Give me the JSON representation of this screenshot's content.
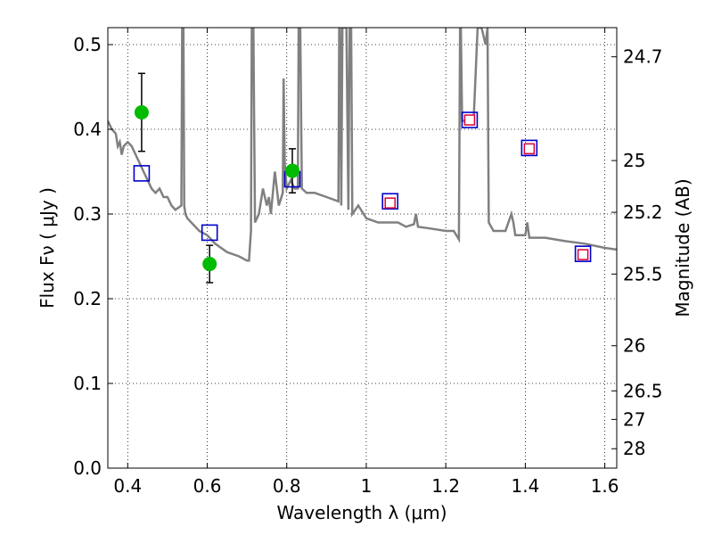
{
  "chart_data": {
    "type": "scatter",
    "xlabel": "Wavelength  λ (μm)",
    "ylabel": "Flux  Fν  ( μJy )",
    "ylabel_right": "Magnitude (AB)",
    "xlim": [
      0.35,
      1.63
    ],
    "ylim": [
      0.0,
      0.52
    ],
    "grid": true,
    "x_ticks": [
      0.4,
      0.6,
      0.8,
      1.0,
      1.2,
      1.4,
      1.6
    ],
    "x_tick_labels": [
      "0.4",
      "0.6",
      "0.8",
      "1",
      "1.2",
      "1.4",
      "1.6"
    ],
    "y_ticks": [
      0.0,
      0.1,
      0.2,
      0.3,
      0.4,
      0.5
    ],
    "y_tick_labels": [
      "0.0",
      "0.1",
      "0.2",
      "0.3",
      "0.4",
      "0.5"
    ],
    "right_ticks": [
      {
        "label": "24.7",
        "flux": 0.4856
      },
      {
        "label": "25",
        "flux": 0.3631
      },
      {
        "label": "25.2",
        "flux": 0.302
      },
      {
        "label": "25.5",
        "flux": 0.2291
      },
      {
        "label": "26",
        "flux": 0.1445
      },
      {
        "label": "26.5",
        "flux": 0.0912
      },
      {
        "label": "27",
        "flux": 0.0575
      },
      {
        "label": "28",
        "flux": 0.0229
      }
    ],
    "colors": {
      "observed": "#00bb00",
      "model_open": "#0000cc",
      "model_inner": "#dd0033",
      "spectrum": "#808080"
    },
    "series": [
      {
        "marker": "circle",
        "x": [
          0.435,
          0.606,
          0.814
        ],
        "y": [
          0.42,
          0.241,
          0.351
        ],
        "err": [
          0.046,
          0.022,
          0.026
        ]
      },
      {
        "marker": "open-square",
        "x": [
          0.435,
          0.606,
          0.814,
          1.06,
          1.26,
          1.41,
          1.545
        ],
        "y": [
          0.348,
          0.278,
          0.341,
          0.315,
          0.411,
          0.378,
          0.253
        ]
      },
      {
        "marker": "small-square",
        "x": [
          1.06,
          1.26,
          1.41,
          1.545
        ],
        "y": [
          0.313,
          0.411,
          0.377,
          0.252
        ]
      }
    ],
    "spectrum": {
      "x": [
        0.35,
        0.36,
        0.37,
        0.375,
        0.38,
        0.385,
        0.39,
        0.4,
        0.41,
        0.42,
        0.43,
        0.44,
        0.45,
        0.46,
        0.47,
        0.48,
        0.49,
        0.5,
        0.51,
        0.52,
        0.535,
        0.537,
        0.54,
        0.542,
        0.545,
        0.55,
        0.58,
        0.6,
        0.62,
        0.65,
        0.68,
        0.7,
        0.705,
        0.71,
        0.712,
        0.716,
        0.72,
        0.73,
        0.74,
        0.75,
        0.755,
        0.76,
        0.77,
        0.78,
        0.79,
        0.792,
        0.795,
        0.8,
        0.81,
        0.82,
        0.828,
        0.83,
        0.834,
        0.838,
        0.85,
        0.87,
        0.9,
        0.93,
        0.932,
        0.934,
        0.937,
        0.94,
        0.95,
        0.955,
        0.958,
        0.962,
        0.965,
        0.98,
        1.0,
        1.03,
        1.08,
        1.1,
        1.12,
        1.125,
        1.13,
        1.16,
        1.2,
        1.22,
        1.233,
        1.236,
        1.238,
        1.241,
        1.25,
        1.27,
        1.28,
        1.29,
        1.3,
        1.305,
        1.308,
        1.32,
        1.35,
        1.365,
        1.37,
        1.375,
        1.4,
        1.405,
        1.41,
        1.45,
        1.5,
        1.55,
        1.6,
        1.63
      ],
      "y": [
        0.41,
        0.4,
        0.395,
        0.38,
        0.385,
        0.37,
        0.38,
        0.385,
        0.38,
        0.37,
        0.36,
        0.35,
        0.34,
        0.33,
        0.325,
        0.33,
        0.32,
        0.32,
        0.31,
        0.305,
        0.31,
        0.52,
        0.52,
        0.31,
        0.3,
        0.295,
        0.28,
        0.275,
        0.265,
        0.255,
        0.25,
        0.245,
        0.245,
        0.28,
        0.52,
        0.52,
        0.29,
        0.3,
        0.33,
        0.31,
        0.32,
        0.3,
        0.35,
        0.31,
        0.325,
        0.46,
        0.36,
        0.33,
        0.34,
        0.33,
        0.33,
        0.52,
        0.52,
        0.33,
        0.325,
        0.325,
        0.32,
        0.315,
        0.52,
        0.52,
        0.31,
        0.52,
        0.52,
        0.305,
        0.52,
        0.52,
        0.3,
        0.31,
        0.295,
        0.29,
        0.29,
        0.285,
        0.288,
        0.3,
        0.285,
        0.283,
        0.28,
        0.28,
        0.27,
        0.52,
        0.52,
        0.41,
        0.41,
        0.41,
        0.52,
        0.52,
        0.5,
        0.52,
        0.29,
        0.28,
        0.28,
        0.3,
        0.29,
        0.275,
        0.275,
        0.29,
        0.272,
        0.272,
        0.268,
        0.265,
        0.26,
        0.258
      ]
    }
  }
}
